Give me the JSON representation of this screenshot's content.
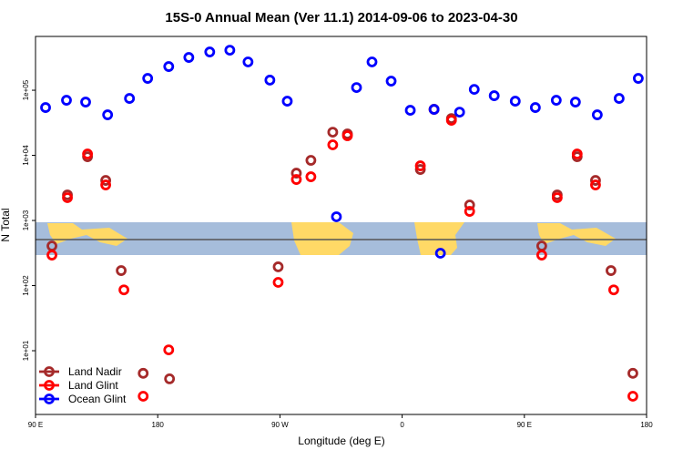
{
  "chart_data": {
    "type": "scatter",
    "title": "15S-0 Annual Mean (Ver 11.1)   2014-09-06 to 2023-04-30",
    "xlabel": "Longitude (deg E)",
    "ylabel": "N Total",
    "xlim": [
      90,
      540
    ],
    "xticks": [
      {
        "value": 90,
        "label": "90 E"
      },
      {
        "value": 180,
        "label": "180"
      },
      {
        "value": 270,
        "label": "90 W"
      },
      {
        "value": 360,
        "label": "0"
      },
      {
        "value": 450,
        "label": "90 E"
      },
      {
        "value": 540,
        "label": "180"
      }
    ],
    "ylim": [
      1.05,
      670000
    ],
    "log_y": true,
    "yticks": [
      {
        "value": 10,
        "label": "1e+01"
      },
      {
        "value": 100,
        "label": "1e+02"
      },
      {
        "value": 1000,
        "label": "1e+03"
      },
      {
        "value": 10000,
        "label": "1e+04"
      },
      {
        "value": 100000,
        "label": "1e+05"
      }
    ],
    "legend_position": "lower left",
    "series": [
      {
        "name": "Land Nadir",
        "color": "#a52a2a",
        "x": [
          102.1,
          113.5,
          128.3,
          141.7,
          153.1,
          169.3,
          188.7,
          268.7,
          282.1,
          292.8,
          308.9,
          319.7,
          373.4,
          383.5,
          396.3,
          409.7,
          462.8,
          474.2,
          488.9,
          502.4,
          513.8,
          529.9
        ],
        "values": [
          406,
          2470,
          9530,
          4120,
          170,
          4.5,
          3.7,
          194,
          5330,
          8380,
          22700,
          21300,
          6070,
          50800,
          36800,
          1730,
          406,
          2470,
          9530,
          4120,
          170,
          4.5
        ]
      },
      {
        "name": "Land Glint",
        "color": "#ff0000",
        "x": [
          102.1,
          113.5,
          128.3,
          141.7,
          155.1,
          169.3,
          188.1,
          268.7,
          282.1,
          292.8,
          308.9,
          319.7,
          373.4,
          383.5,
          396.3,
          409.7,
          462.8,
          474.2,
          488.9,
          502.4,
          515.8,
          529.9
        ],
        "values": [
          294,
          2240,
          10500,
          3510,
          86,
          2.0,
          10.3,
          112,
          4260,
          4690,
          14500,
          20000,
          6900,
          50800,
          34500,
          1380,
          294,
          2240,
          10500,
          3510,
          86,
          2.0
        ]
      },
      {
        "name": "Ocean Glint",
        "color": "#0000ff",
        "x": [
          97.4,
          112.8,
          126.9,
          143.1,
          159.2,
          172.6,
          188.1,
          202.9,
          218.3,
          233.1,
          246.5,
          262.6,
          275.4,
          311.6,
          326.4,
          337.8,
          351.9,
          366.0,
          383.5,
          388.2,
          402.3,
          413.1,
          427.8,
          443.3,
          458.1,
          473.5,
          487.6,
          503.7,
          519.8,
          533.9
        ],
        "values": [
          54200,
          70200,
          65800,
          41900,
          74800,
          152000,
          231000,
          319000,
          387000,
          412000,
          272000,
          143000,
          67900,
          1140,
          110000,
          272000,
          138000,
          49200,
          50800,
          314,
          46100,
          103000,
          82400,
          67900,
          54200,
          70200,
          65800,
          41900,
          74800,
          152000
        ]
      }
    ]
  }
}
